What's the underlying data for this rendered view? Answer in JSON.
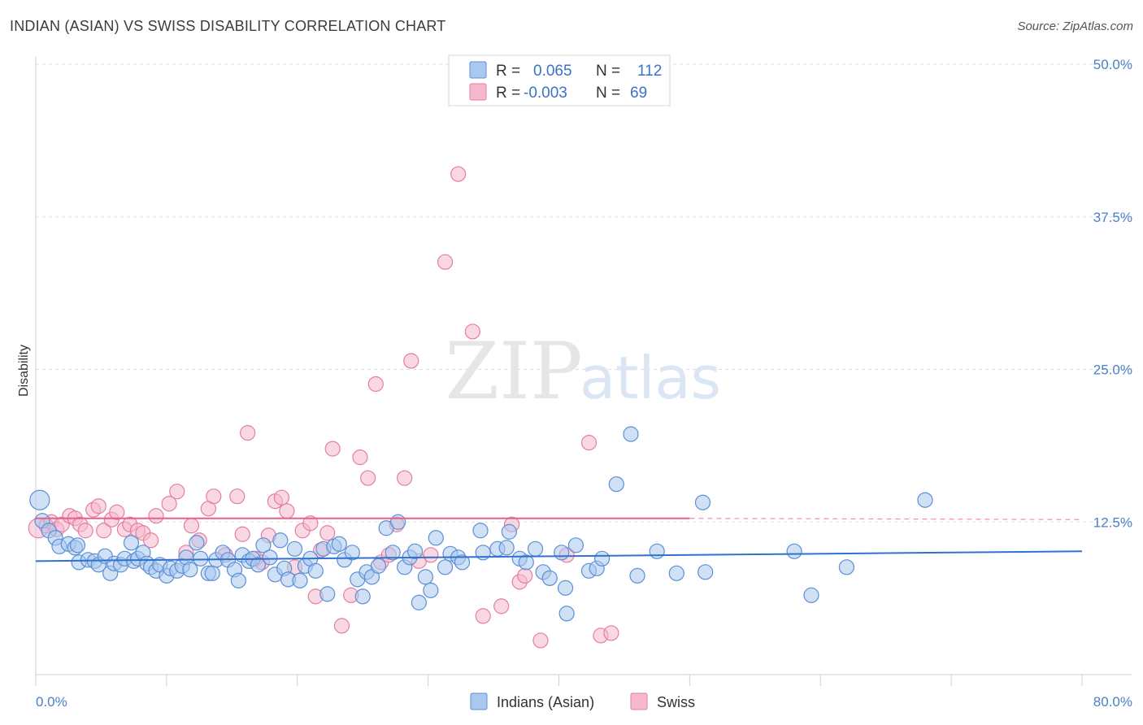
{
  "header": {
    "title": "INDIAN (ASIAN) VS SWISS DISABILITY CORRELATION CHART",
    "source": "Source: ZipAtlas.com"
  },
  "watermark": {
    "zip": "ZIP",
    "atlas": "atlas"
  },
  "chart_data": {
    "type": "scatter",
    "ylabel": "Disability",
    "x_range": [
      0,
      80
    ],
    "y_range": [
      0,
      50
    ],
    "x_ticks": [
      "0.0%",
      "80.0%"
    ],
    "y_ticks": [
      {
        "value": 12.5,
        "label": "12.5%"
      },
      {
        "value": 25.0,
        "label": "25.0%"
      },
      {
        "value": 37.5,
        "label": "37.5%"
      },
      {
        "value": 50.0,
        "label": "50.0%"
      }
    ],
    "grid": true,
    "legend": {
      "placement": "top-center",
      "rows": [
        {
          "r_label": "R =",
          "r_value": "0.065",
          "n_label": "N =",
          "n_value": "112"
        },
        {
          "r_label": "R =",
          "r_value": "-0.003",
          "n_label": "N =",
          "n_value": "69"
        }
      ]
    },
    "colors": {
      "blue_fill": "#a9c8ef",
      "blue_stroke": "#5b8fd6",
      "blue_line": "#2f72cc",
      "pink_fill": "#f6b8cc",
      "pink_stroke": "#e47ea0",
      "pink_line": "#e8608a"
    },
    "series": [
      {
        "name": "Indians (Asian)",
        "trend": {
          "x0": 0,
          "y0": 9.3,
          "x1": 80,
          "y1": 10.1
        },
        "points": [
          [
            0.3,
            14.3
          ],
          [
            0.5,
            12.6
          ],
          [
            1,
            11.8
          ],
          [
            1.5,
            11.2
          ],
          [
            1.8,
            10.5
          ],
          [
            2.5,
            10.7
          ],
          [
            3,
            10.4
          ],
          [
            3.2,
            10.6
          ],
          [
            3.3,
            9.2
          ],
          [
            4,
            9.4
          ],
          [
            4.5,
            9.3
          ],
          [
            4.8,
            9.0
          ],
          [
            5.3,
            9.7
          ],
          [
            5.7,
            8.3
          ],
          [
            6,
            9.1
          ],
          [
            6.5,
            9.0
          ],
          [
            6.8,
            9.5
          ],
          [
            7.3,
            10.8
          ],
          [
            7.5,
            9.3
          ],
          [
            7.8,
            9.5
          ],
          [
            8.2,
            10.0
          ],
          [
            8.5,
            9.1
          ],
          [
            8.8,
            8.8
          ],
          [
            9.2,
            8.5
          ],
          [
            9.5,
            9.0
          ],
          [
            10,
            8.1
          ],
          [
            10.3,
            8.7
          ],
          [
            10.8,
            8.5
          ],
          [
            11.2,
            8.9
          ],
          [
            11.5,
            9.6
          ],
          [
            11.8,
            8.6
          ],
          [
            12.3,
            10.8
          ],
          [
            12.6,
            9.5
          ],
          [
            13.2,
            8.3
          ],
          [
            13.5,
            8.3
          ],
          [
            13.8,
            9.4
          ],
          [
            14.3,
            10.0
          ],
          [
            14.7,
            9.4
          ],
          [
            15.2,
            8.6
          ],
          [
            15.5,
            7.7
          ],
          [
            15.8,
            9.8
          ],
          [
            16.3,
            9.3
          ],
          [
            16.6,
            9.5
          ],
          [
            17,
            9.0
          ],
          [
            17.4,
            10.6
          ],
          [
            17.9,
            9.6
          ],
          [
            18.3,
            8.2
          ],
          [
            18.7,
            11.0
          ],
          [
            19,
            8.7
          ],
          [
            19.3,
            7.8
          ],
          [
            19.8,
            10.3
          ],
          [
            20.2,
            7.7
          ],
          [
            20.6,
            8.9
          ],
          [
            21,
            9.5
          ],
          [
            21.4,
            8.5
          ],
          [
            22,
            10.3
          ],
          [
            22.3,
            6.6
          ],
          [
            22.8,
            10.5
          ],
          [
            23.2,
            10.7
          ],
          [
            23.6,
            9.4
          ],
          [
            24.2,
            10.0
          ],
          [
            24.6,
            7.8
          ],
          [
            25,
            6.4
          ],
          [
            25.3,
            8.4
          ],
          [
            25.7,
            8.0
          ],
          [
            26.2,
            8.9
          ],
          [
            26.8,
            12.0
          ],
          [
            27.3,
            10.0
          ],
          [
            27.7,
            12.5
          ],
          [
            28.2,
            8.8
          ],
          [
            28.6,
            9.6
          ],
          [
            29,
            10.1
          ],
          [
            29.3,
            5.9
          ],
          [
            29.8,
            8.0
          ],
          [
            30.2,
            6.9
          ],
          [
            30.6,
            11.2
          ],
          [
            31.3,
            8.8
          ],
          [
            31.7,
            9.9
          ],
          [
            32.3,
            9.6
          ],
          [
            32.6,
            9.2
          ],
          [
            34,
            11.8
          ],
          [
            34.2,
            10.0
          ],
          [
            35.3,
            10.3
          ],
          [
            36,
            10.4
          ],
          [
            36.2,
            11.7
          ],
          [
            37,
            9.5
          ],
          [
            37.5,
            9.2
          ],
          [
            38.2,
            10.3
          ],
          [
            38.8,
            8.4
          ],
          [
            39.3,
            7.9
          ],
          [
            40.2,
            10.0
          ],
          [
            40.5,
            7.1
          ],
          [
            40.6,
            5.0
          ],
          [
            41.3,
            10.6
          ],
          [
            42.3,
            8.5
          ],
          [
            42.9,
            8.7
          ],
          [
            43.3,
            9.5
          ],
          [
            44.4,
            15.6
          ],
          [
            45.5,
            19.7
          ],
          [
            46,
            8.1
          ],
          [
            47.5,
            10.1
          ],
          [
            49,
            8.3
          ],
          [
            51,
            14.1
          ],
          [
            51.2,
            8.4
          ],
          [
            58,
            10.1
          ],
          [
            59.3,
            6.5
          ],
          [
            62,
            8.8
          ],
          [
            68,
            14.3
          ]
        ]
      },
      {
        "name": "Swiss",
        "trend": {
          "x0": 0,
          "y0": 12.8,
          "x1": 50,
          "y1": 12.8,
          "dash_x1": 80,
          "dash_y1": 12.7
        },
        "points": [
          [
            0.2,
            12.0
          ],
          [
            0.8,
            12.2
          ],
          [
            1.2,
            12.5
          ],
          [
            1.6,
            11.9
          ],
          [
            2.0,
            12.3
          ],
          [
            2.6,
            13.0
          ],
          [
            3.0,
            12.8
          ],
          [
            3.4,
            12.3
          ],
          [
            3.8,
            11.8
          ],
          [
            4.4,
            13.5
          ],
          [
            4.8,
            13.8
          ],
          [
            5.2,
            11.8
          ],
          [
            5.8,
            12.7
          ],
          [
            6.2,
            13.3
          ],
          [
            6.8,
            11.9
          ],
          [
            7.2,
            12.3
          ],
          [
            7.8,
            11.8
          ],
          [
            8.2,
            11.6
          ],
          [
            8.8,
            11.0
          ],
          [
            9.2,
            13.0
          ],
          [
            10.2,
            14.0
          ],
          [
            10.8,
            15.0
          ],
          [
            11.5,
            10.0
          ],
          [
            11.9,
            12.2
          ],
          [
            12.5,
            11.0
          ],
          [
            13.2,
            13.6
          ],
          [
            13.6,
            14.6
          ],
          [
            14.5,
            9.8
          ],
          [
            15.4,
            14.6
          ],
          [
            15.8,
            11.5
          ],
          [
            16.2,
            19.8
          ],
          [
            16.8,
            9.5
          ],
          [
            17.3,
            9.2
          ],
          [
            17.8,
            11.4
          ],
          [
            18.3,
            14.2
          ],
          [
            18.8,
            14.5
          ],
          [
            19.2,
            13.4
          ],
          [
            19.8,
            8.8
          ],
          [
            20.4,
            11.8
          ],
          [
            21,
            12.4
          ],
          [
            21.4,
            6.4
          ],
          [
            21.8,
            10.2
          ],
          [
            22.3,
            11.6
          ],
          [
            22.7,
            18.5
          ],
          [
            23.4,
            4.0
          ],
          [
            24.1,
            6.5
          ],
          [
            24.8,
            17.8
          ],
          [
            25.4,
            16.1
          ],
          [
            26,
            23.8
          ],
          [
            26.4,
            9.2
          ],
          [
            27,
            9.8
          ],
          [
            27.6,
            12.3
          ],
          [
            28.2,
            16.1
          ],
          [
            28.7,
            25.7
          ],
          [
            29.3,
            9.3
          ],
          [
            30.2,
            9.8
          ],
          [
            31.3,
            33.8
          ],
          [
            32.3,
            41.0
          ],
          [
            33.4,
            28.1
          ],
          [
            34.2,
            4.8
          ],
          [
            35.6,
            5.6
          ],
          [
            36.4,
            12.3
          ],
          [
            37,
            7.6
          ],
          [
            37.4,
            8.1
          ],
          [
            38.6,
            2.8
          ],
          [
            40.6,
            9.8
          ],
          [
            42.3,
            19.0
          ],
          [
            43.2,
            3.2
          ],
          [
            44,
            3.4
          ]
        ]
      }
    ]
  }
}
